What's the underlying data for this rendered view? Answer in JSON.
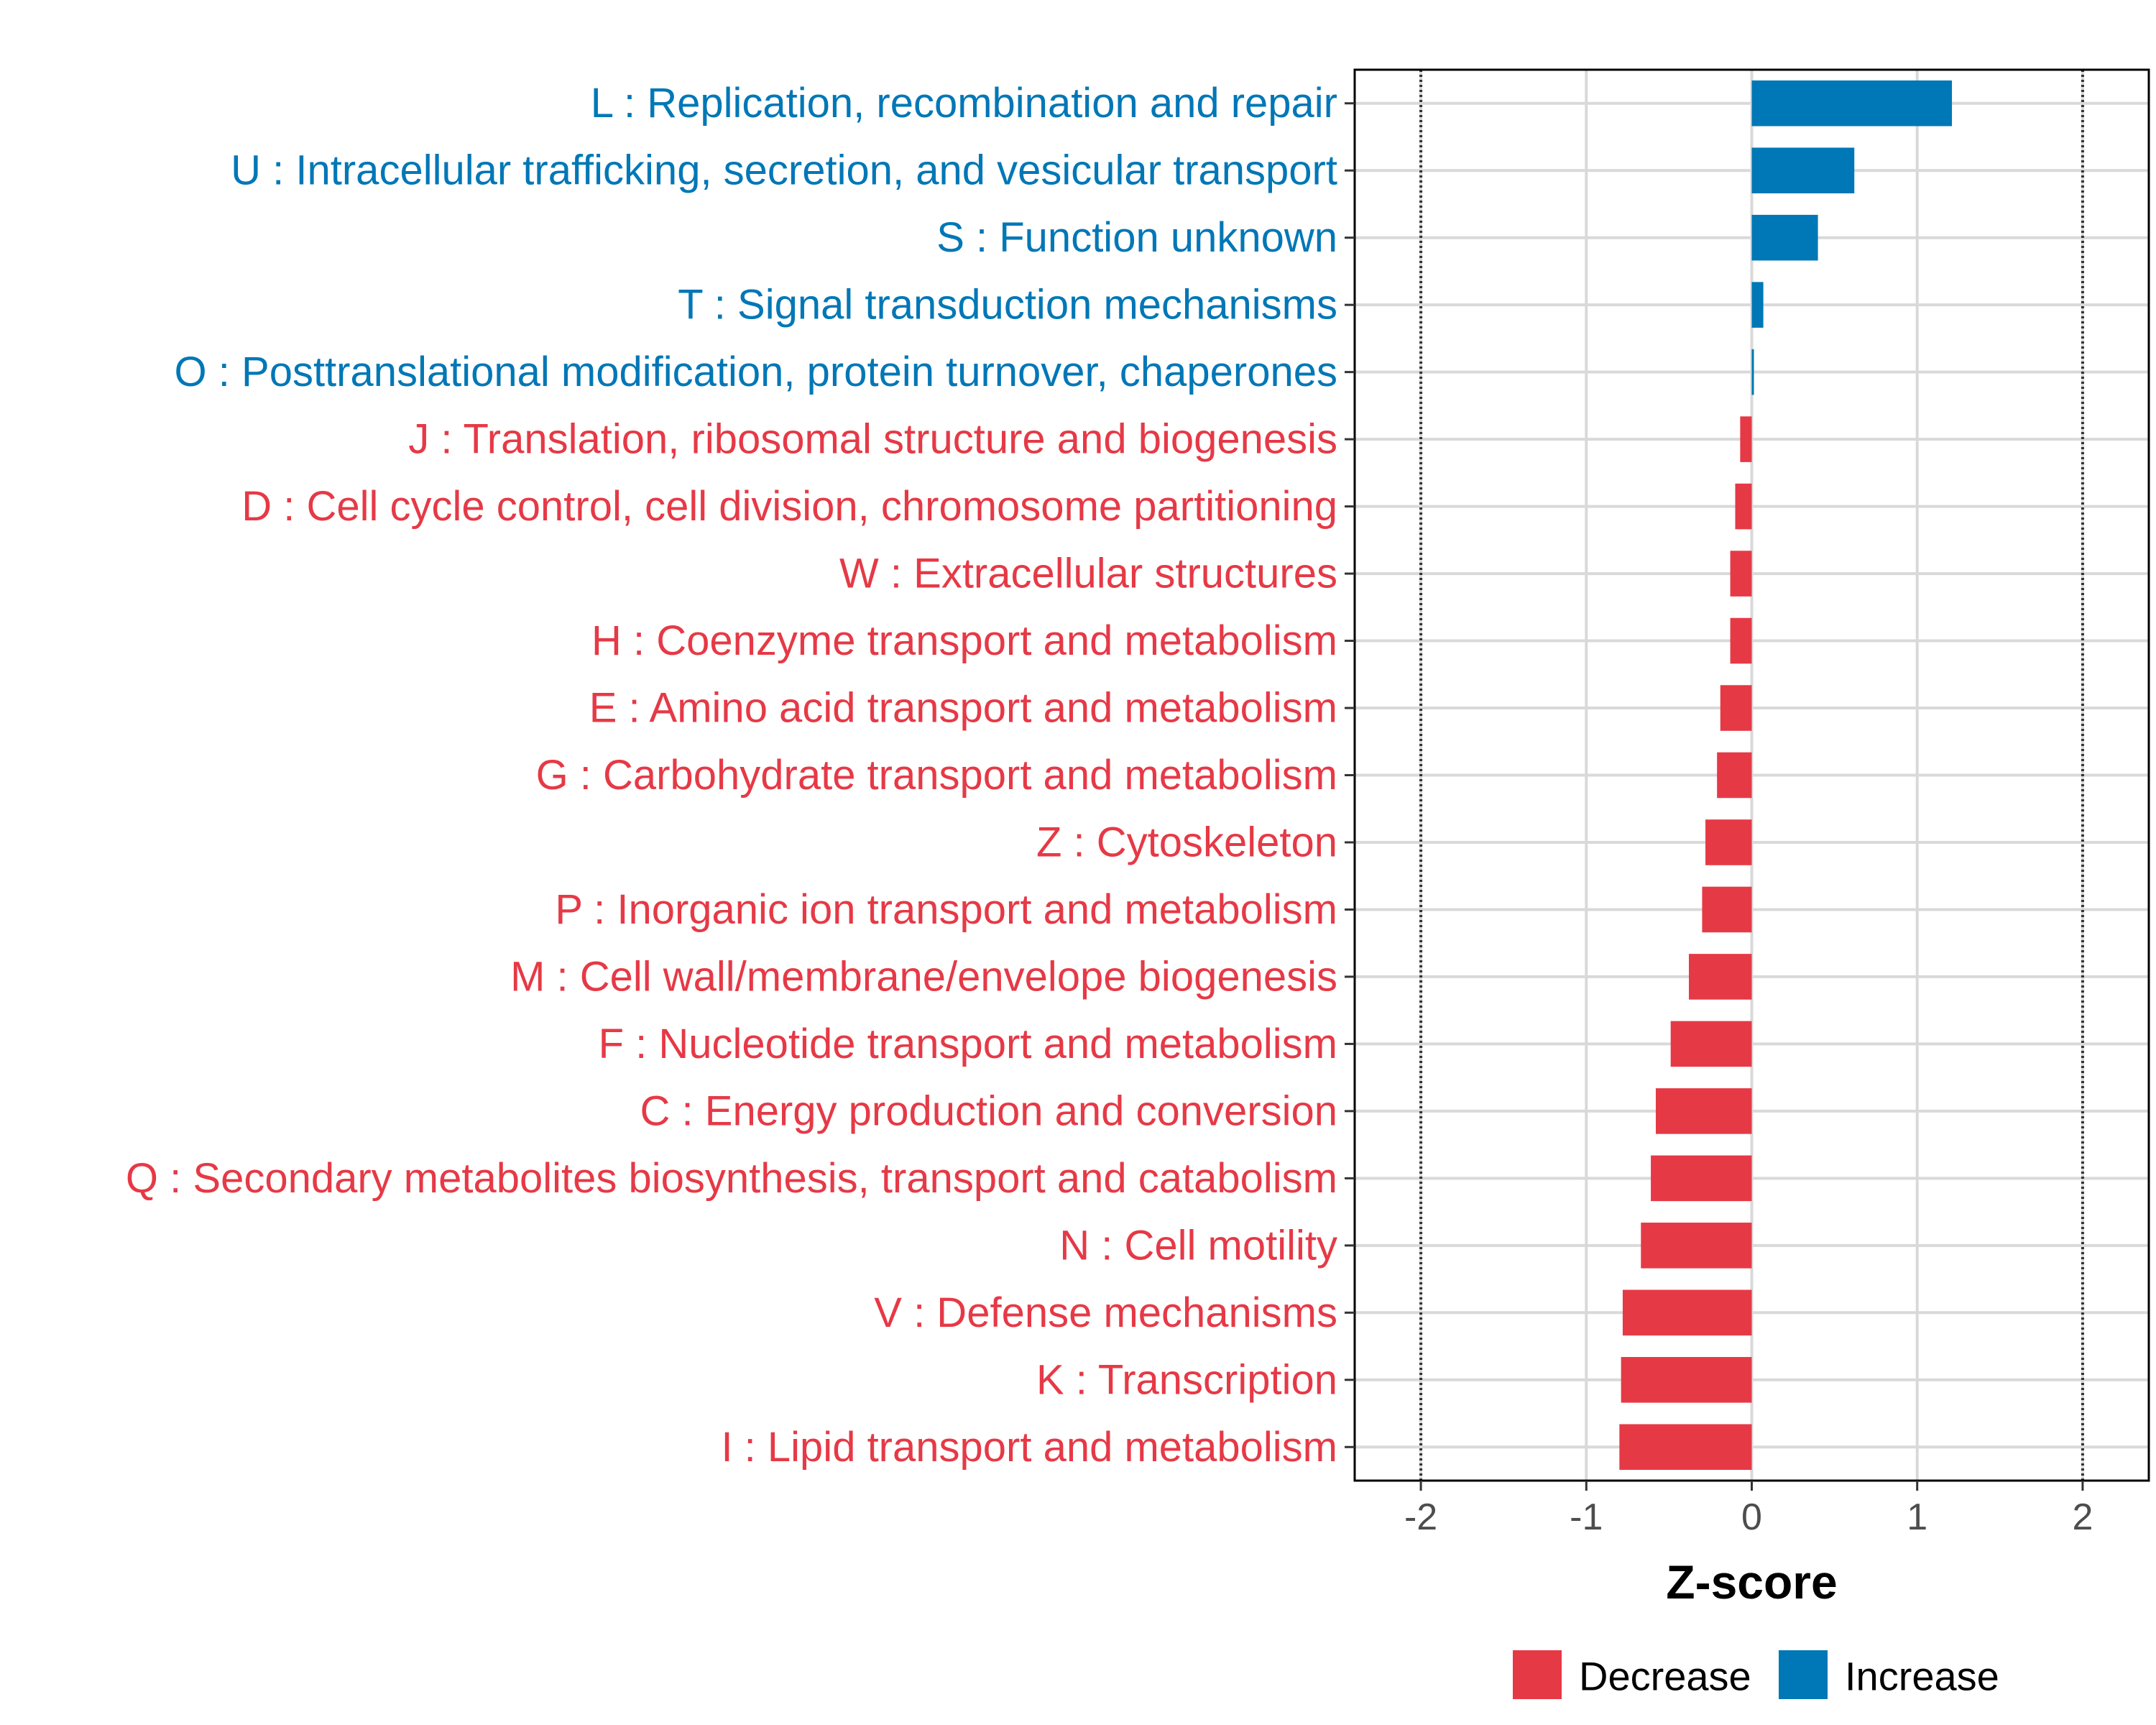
{
  "chart_data": {
    "type": "bar",
    "orientation": "horizontal",
    "title": "",
    "xlabel": "Z-score",
    "ylabel": "",
    "xlim": [
      -2.4,
      2.4
    ],
    "x_ticks": [
      -2,
      -1,
      0,
      1,
      2
    ],
    "x_tick_labels": [
      "-2",
      "-1",
      "0",
      "1",
      "2"
    ],
    "reference_lines": [
      -2,
      2
    ],
    "grid": true,
    "legend_position": "bottom",
    "categories": [
      "L : Replication, recombination and repair",
      "U : Intracellular trafficking, secretion, and vesicular transport",
      "S : Function unknown",
      "T : Signal transduction mechanisms",
      "O : Posttranslational modification, protein turnover, chaperones",
      "J : Translation, ribosomal structure and biogenesis",
      "D : Cell cycle control, cell division, chromosome partitioning",
      "W : Extracellular structures",
      "H : Coenzyme transport and metabolism",
      "E : Amino acid transport and metabolism",
      "G : Carbohydrate transport and metabolism",
      "Z : Cytoskeleton",
      "P : Inorganic ion transport and metabolism",
      "M : Cell wall/membrane/envelope biogenesis",
      "F : Nucleotide transport and metabolism",
      "C : Energy production and conversion",
      "Q : Secondary metabolites biosynthesis, transport and catabolism",
      "N : Cell motility",
      "V : Defense mechanisms",
      "K : Transcription",
      "I : Lipid transport and metabolism"
    ],
    "values": [
      1.21,
      0.62,
      0.4,
      0.07,
      0.01,
      -0.07,
      -0.1,
      -0.13,
      -0.13,
      -0.19,
      -0.21,
      -0.28,
      -0.3,
      -0.38,
      -0.49,
      -0.58,
      -0.61,
      -0.67,
      -0.78,
      -0.79,
      -0.8
    ],
    "groups": [
      "Increase",
      "Increase",
      "Increase",
      "Increase",
      "Increase",
      "Decrease",
      "Decrease",
      "Decrease",
      "Decrease",
      "Decrease",
      "Decrease",
      "Decrease",
      "Decrease",
      "Decrease",
      "Decrease",
      "Decrease",
      "Decrease",
      "Decrease",
      "Decrease",
      "Decrease",
      "Decrease"
    ],
    "legend": [
      {
        "name": "Decrease",
        "color": "#E63946"
      },
      {
        "name": "Increase",
        "color": "#0077B6"
      }
    ]
  }
}
